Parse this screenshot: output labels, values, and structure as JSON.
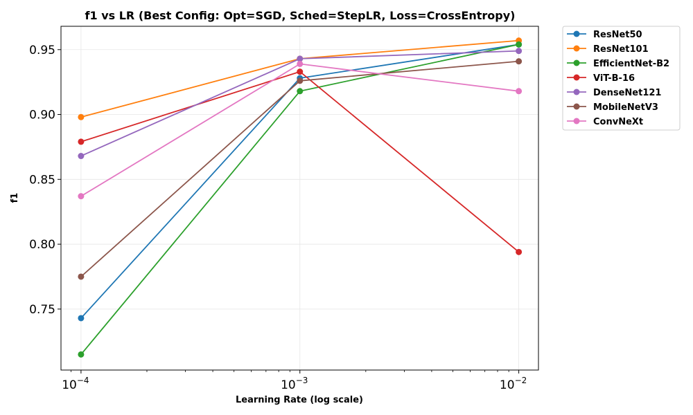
{
  "chart_data": {
    "type": "line",
    "title": "f1 vs LR (Best Config: Opt=SGD, Sched=StepLR, Loss=CrossEntropy)",
    "xlabel": "Learning Rate (log scale)",
    "ylabel": "f1",
    "x_scale": "log",
    "x": [
      0.0001,
      0.001,
      0.01
    ],
    "x_tick_labels": [
      {
        "base": "10",
        "exp": "−4"
      },
      {
        "base": "10",
        "exp": "−3"
      },
      {
        "base": "10",
        "exp": "−2"
      }
    ],
    "xlim": [
      8.1e-05,
      0.0123
    ],
    "ylim": [
      0.703,
      0.968
    ],
    "y_ticks": [
      0.75,
      0.8,
      0.85,
      0.9,
      0.95
    ],
    "y_tick_labels": [
      "0.75",
      "0.80",
      "0.85",
      "0.90",
      "0.95"
    ],
    "grid": true,
    "legend_position": "outside-top-right",
    "series": [
      {
        "name": "ResNet50",
        "color": "#1f77b4",
        "values": [
          0.743,
          0.928,
          0.954
        ]
      },
      {
        "name": "ResNet101",
        "color": "#ff7f0e",
        "values": [
          0.898,
          0.943,
          0.957
        ]
      },
      {
        "name": "EfficientNet-B2",
        "color": "#2ca02c",
        "values": [
          0.715,
          0.918,
          0.954
        ]
      },
      {
        "name": "ViT-B-16",
        "color": "#d62728",
        "values": [
          0.879,
          0.933,
          0.794
        ]
      },
      {
        "name": "DenseNet121",
        "color": "#9467bd",
        "values": [
          0.868,
          0.943,
          0.949
        ]
      },
      {
        "name": "MobileNetV3",
        "color": "#8c564b",
        "values": [
          0.775,
          0.926,
          0.941
        ]
      },
      {
        "name": "ConvNeXt",
        "color": "#e377c2",
        "values": [
          0.837,
          0.939,
          0.918
        ]
      }
    ]
  }
}
